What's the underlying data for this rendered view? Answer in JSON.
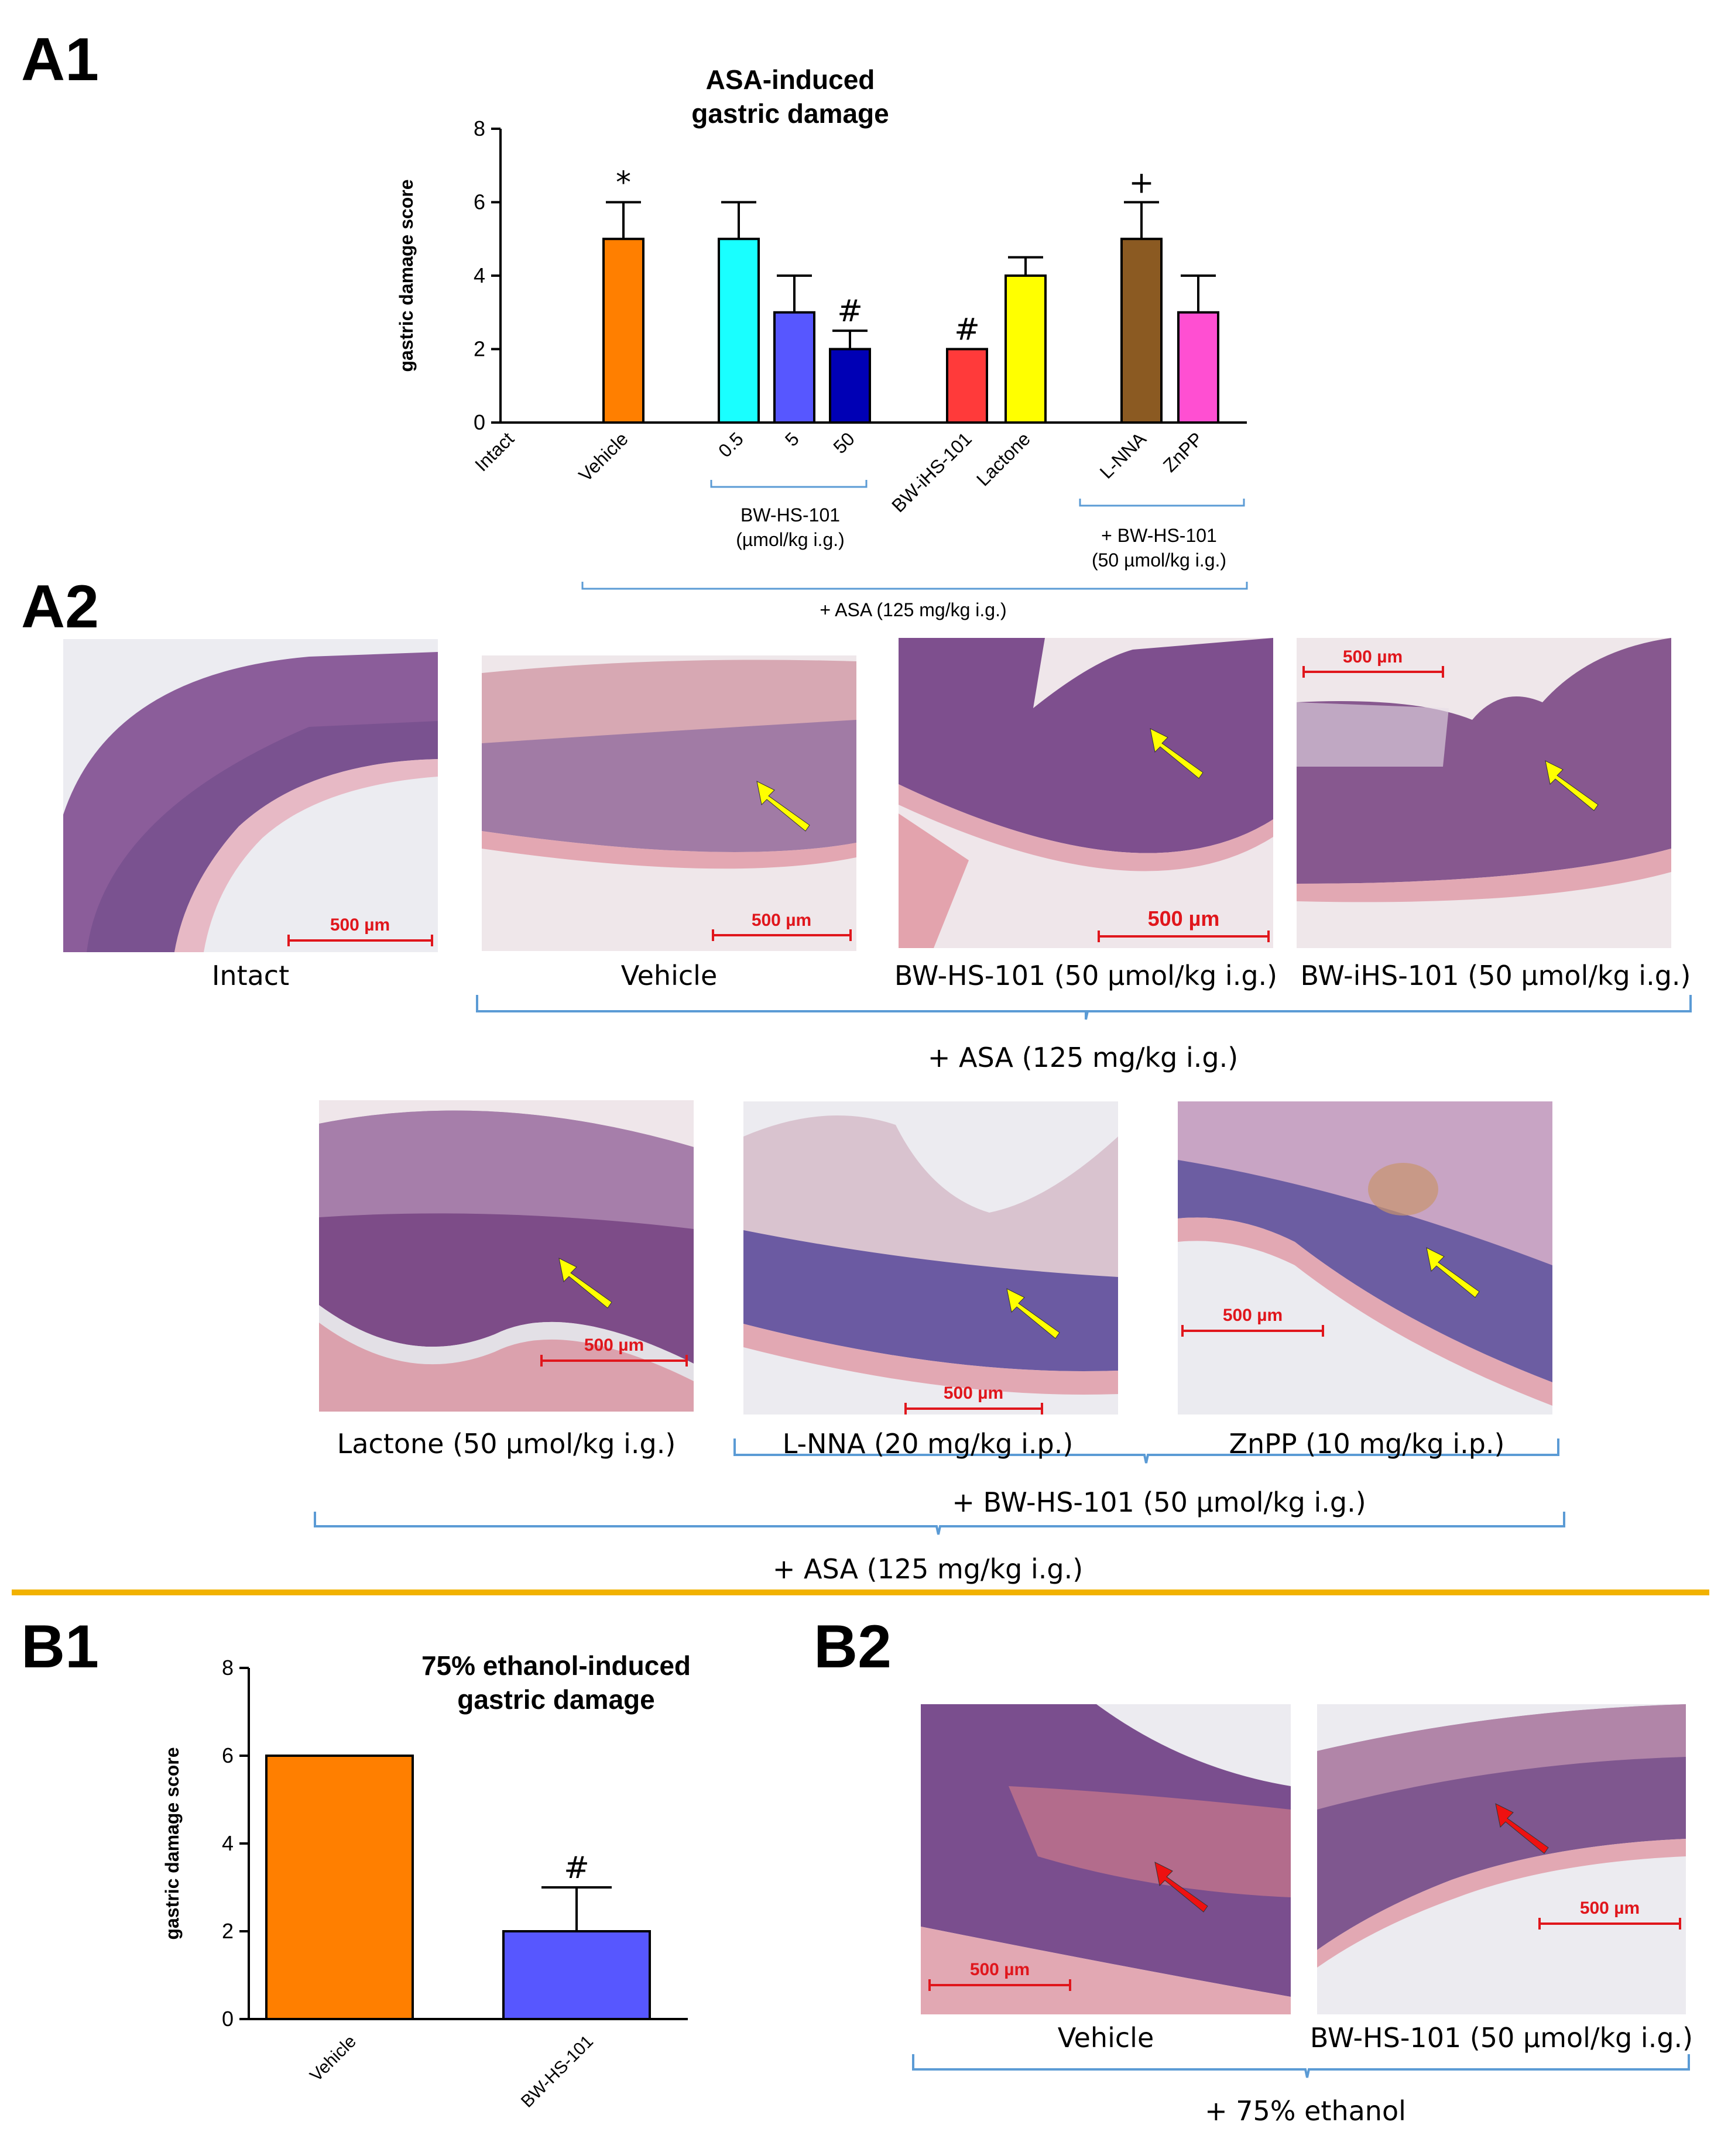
{
  "panels": {
    "a1": "A1",
    "a2": "A2",
    "b1": "B1",
    "b2": "B2"
  },
  "colors": {
    "orange": "#ff7f00",
    "cyan": "#19ffff",
    "blue": "#5757ff",
    "navy": "#0000b5",
    "red": "#ff3a3a",
    "yellow": "#ffff00",
    "brown": "#8b5a22",
    "magenta": "#ff4fd2",
    "bracket": "#5b9bd5",
    "separator": "#f2b200",
    "scalebar": "#e0161c"
  },
  "chart_data": [
    {
      "type": "bar",
      "title": "ASA-induced gastric damage",
      "title_lines": [
        "ASA-induced",
        "gastric damage"
      ],
      "ylabel": "gastric damage score",
      "xlabel": "",
      "ylim": [
        0,
        8
      ],
      "yticks": [
        "0",
        "2",
        "4",
        "6",
        "8"
      ],
      "categories": [
        "Intact",
        "Vehicle",
        "0.5",
        "5",
        "50",
        "BW-iHS-101",
        "Lactone",
        "L-NNA",
        "ZnPP"
      ],
      "values": [
        0,
        5,
        5,
        3,
        2,
        2,
        4,
        5,
        3
      ],
      "errors": [
        0,
        1,
        1,
        1,
        0.5,
        0,
        0.5,
        1,
        1
      ],
      "annotations": [
        "",
        "*",
        "",
        "",
        "#",
        "#",
        "",
        "+",
        ""
      ],
      "bar_colors": [
        "#ffffff",
        "#ff7f00",
        "#19ffff",
        "#5757ff",
        "#0000b5",
        "#ff3a3a",
        "#ffff00",
        "#8b5a22",
        "#ff4fd2"
      ],
      "group_labels": {
        "bw_dose_line1": "BW-HS-101",
        "bw_dose_line2": "(µmol/kg i.g.)",
        "inhibitor_line1": "+ BW-HS-101",
        "inhibitor_line2": "(50 µmol/kg i.g.)",
        "asa": "+ ASA (125 mg/kg i.g.)"
      }
    },
    {
      "type": "bar",
      "title": "75% ethanol-induced gastric damage",
      "title_lines": [
        "75% ethanol-induced",
        "gastric damage"
      ],
      "ylabel": "gastric damage score",
      "xlabel": "",
      "ylim": [
        0,
        8
      ],
      "yticks": [
        "0",
        "2",
        "4",
        "6",
        "8"
      ],
      "categories": [
        "Vehicle",
        "BW-HS-101"
      ],
      "values": [
        6,
        2
      ],
      "errors": [
        0,
        1
      ],
      "annotations": [
        "",
        "#"
      ],
      "bar_colors": [
        "#ff7f00",
        "#5757ff"
      ]
    }
  ],
  "a2": {
    "captions": {
      "intact": "Intact",
      "vehicle": "Vehicle",
      "bw": "BW-HS-101 (50 µmol/kg i.g.)",
      "biw": "BW-iHS-101 (50 µmol/kg i.g.)",
      "lactone": "Lactone (50 µmol/kg i.g.)",
      "lnna": "L-NNA (20 mg/kg i.p.)",
      "znpp": "ZnPP (10 mg/kg i.p.)"
    },
    "brackets": {
      "asa_row1": "+ ASA (125 mg/kg i.g.)",
      "bw_row2": "+ BW-HS-101 (50 µmol/kg i.g.)",
      "asa_row2": "+ ASA (125 mg/kg i.g.)"
    },
    "scale_bar": "500 µm"
  },
  "b2": {
    "captions": {
      "vehicle": "Vehicle",
      "bw": "BW-HS-101 (50 µmol/kg i.g.)"
    },
    "bracket": "+ 75% ethanol",
    "scale_bar": "500 µm"
  }
}
